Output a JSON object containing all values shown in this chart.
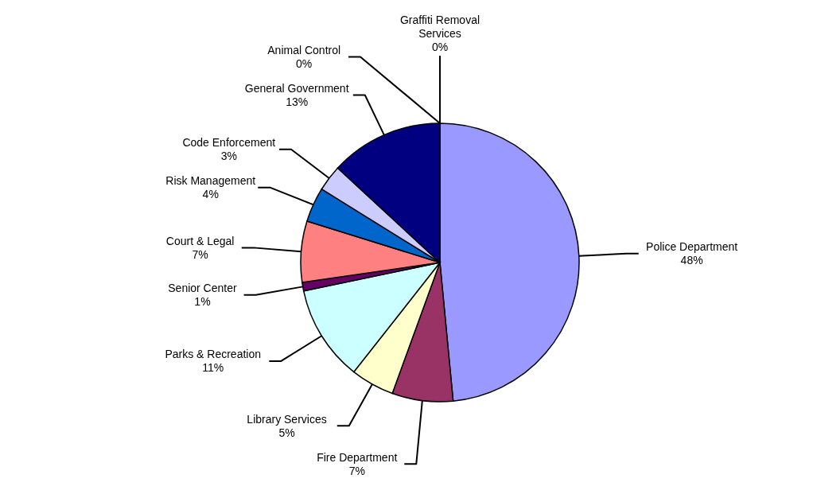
{
  "chart_data": {
    "type": "pie",
    "categories": [
      "Police Department",
      "Fire Department",
      "Library Services",
      "Parks & Recreation",
      "Senior Center",
      "Court & Legal",
      "Risk Management",
      "Code Enforcement",
      "General Government",
      "Animal Control",
      "Graffiti Removal Services"
    ],
    "values": [
      48,
      7,
      5,
      11,
      1,
      7,
      4,
      3,
      13,
      0,
      0
    ],
    "value_labels": [
      "48%",
      "7%",
      "5%",
      "11%",
      "1%",
      "7%",
      "4%",
      "3%",
      "13%",
      "0%",
      "0%"
    ],
    "colors": [
      "#9999ff",
      "#993366",
      "#ffffcc",
      "#ccffff",
      "#660066",
      "#ff8080",
      "#0066cc",
      "#ccccff",
      "#000080",
      "#808000",
      "#ffcc00"
    ]
  }
}
